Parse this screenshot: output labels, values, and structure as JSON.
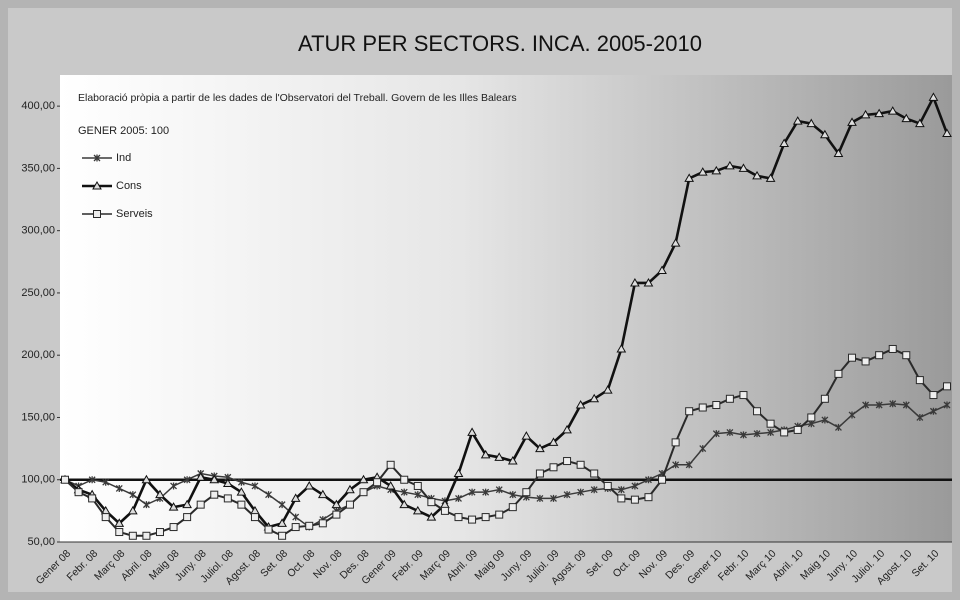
{
  "chart_data": {
    "type": "line",
    "title": "ATUR PER SECTORS. INCA. 2005-2010",
    "subtitle": "Elaboració pròpia a partir de les dades de l'Observatori del Treball. Govern de les Illes Balears",
    "annotation": "GENER 2005: 100",
    "reference_line": 100,
    "categories": [
      "Gener 08",
      null,
      "Febr. 08",
      null,
      "Març 08",
      null,
      "Abril. 08",
      null,
      "Maig 08",
      null,
      "Juny. 08",
      null,
      "Juliol. 08",
      null,
      "Agost. 08",
      null,
      "Set. 08",
      null,
      "Oct. 08",
      null,
      "Nov. 08",
      null,
      "Des. 08",
      null,
      "Gener 09",
      null,
      "Febr. 09",
      null,
      "Març 09",
      null,
      "Abril. 09",
      null,
      "Maig 09",
      null,
      "Juny. 09",
      null,
      "Juliol. 09",
      null,
      "Agost. 09",
      null,
      "Set. 09",
      null,
      "Oct. 09",
      null,
      "Nov. 09",
      null,
      "Des. 09",
      null,
      "Gener 10",
      null,
      "Febr. 10",
      null,
      "Març 10",
      null,
      "Abril. 10",
      null,
      "Maig 10",
      null,
      "Juny. 10",
      null,
      "Juliol. 10",
      null,
      "Agost. 10",
      null,
      "Set. 10",
      null
    ],
    "series": [
      {
        "name": "Ind",
        "color": "#3a3a3a",
        "marker": "asterisk",
        "values": [
          100,
          95,
          100,
          98,
          93,
          88,
          80,
          85,
          95,
          100,
          105,
          103,
          102,
          98,
          95,
          88,
          80,
          70,
          62,
          68,
          75,
          80,
          90,
          95,
          92,
          90,
          88,
          85,
          83,
          85,
          90,
          90,
          92,
          88,
          86,
          85,
          85,
          88,
          90,
          92,
          93,
          92,
          95,
          100,
          105,
          112,
          112,
          125,
          137,
          138,
          136,
          137,
          138,
          140,
          143,
          145,
          148,
          142,
          152,
          160,
          160,
          161,
          160,
          150,
          155,
          160
        ]
      },
      {
        "name": "Cons",
        "color": "#111111",
        "marker": "triangle",
        "values": [
          100,
          92,
          88,
          75,
          65,
          75,
          100,
          88,
          78,
          80,
          102,
          100,
          97,
          90,
          75,
          62,
          65,
          85,
          95,
          88,
          80,
          92,
          100,
          102,
          95,
          80,
          75,
          70,
          80,
          105,
          138,
          120,
          118,
          115,
          135,
          125,
          130,
          140,
          160,
          165,
          172,
          205,
          258,
          258,
          268,
          290,
          342,
          347,
          348,
          352,
          350,
          344,
          342,
          370,
          388,
          386,
          377,
          362,
          387,
          393,
          394,
          396,
          390,
          386,
          407,
          378
        ]
      },
      {
        "name": "Serveis",
        "color": "#2a2a2a",
        "marker": "square",
        "values": [
          100,
          90,
          85,
          70,
          58,
          55,
          55,
          58,
          62,
          70,
          80,
          88,
          85,
          80,
          70,
          60,
          55,
          62,
          63,
          65,
          72,
          80,
          90,
          98,
          112,
          100,
          95,
          82,
          75,
          70,
          68,
          70,
          72,
          78,
          90,
          105,
          110,
          115,
          112,
          105,
          95,
          85,
          84,
          86,
          100,
          130,
          155,
          158,
          160,
          165,
          168,
          155,
          145,
          138,
          140,
          150,
          165,
          185,
          198,
          195,
          200,
          205,
          200,
          180,
          168,
          175
        ]
      }
    ],
    "ylim": [
      50,
      425
    ],
    "yticks": [
      {
        "value": 50,
        "label": "50,00"
      },
      {
        "value": 100,
        "label": "100,00"
      },
      {
        "value": 150,
        "label": "150,00"
      },
      {
        "value": 200,
        "label": "200,00"
      },
      {
        "value": 250,
        "label": "250,00"
      },
      {
        "value": 300,
        "label": "300,00"
      },
      {
        "value": 350,
        "label": "350,00"
      },
      {
        "value": 400,
        "label": "400,00"
      }
    ],
    "grid": false
  }
}
